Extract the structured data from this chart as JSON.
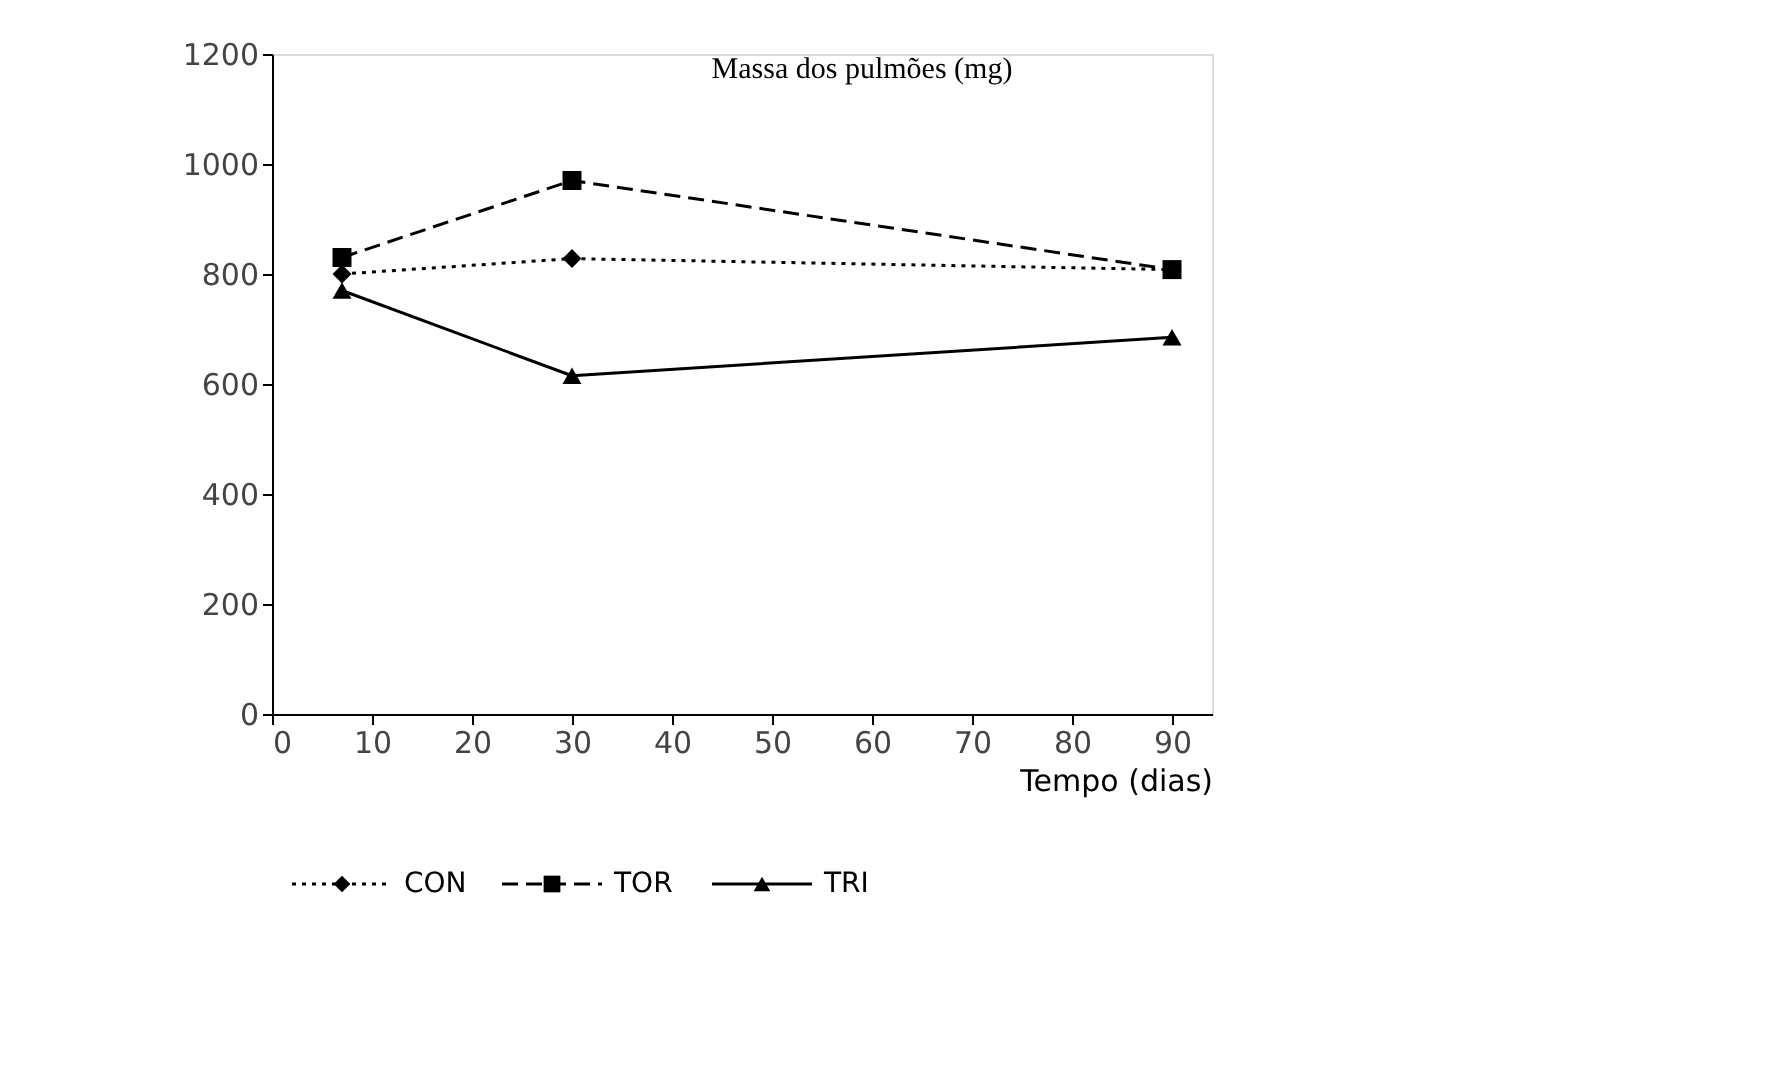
{
  "chart_data": {
    "type": "line",
    "title": "Massa dos pulmões (mg)",
    "xlabel": "Tempo (dias)",
    "x": [
      7,
      30,
      90
    ],
    "series": [
      {
        "name": "CON",
        "color": "#000000",
        "marker": "diamond",
        "line_style": "dotted",
        "values": [
          800,
          828,
          808
        ]
      },
      {
        "name": "TOR",
        "color": "#000000",
        "marker": "square",
        "line_style": "dashed",
        "values": [
          830,
          970,
          808
        ]
      },
      {
        "name": "TRI",
        "color": "#000000",
        "marker": "triangle",
        "line_style": "solid",
        "values": [
          770,
          615,
          685
        ]
      }
    ],
    "xlim": [
      0,
      94
    ],
    "xticks": [
      0,
      10,
      20,
      30,
      40,
      50,
      60,
      70,
      80,
      90
    ],
    "ylim": [
      0,
      1200
    ],
    "yticks": [
      0,
      200,
      400,
      600,
      800,
      1000,
      1200
    ],
    "grid": false,
    "legend": "bottom left"
  }
}
